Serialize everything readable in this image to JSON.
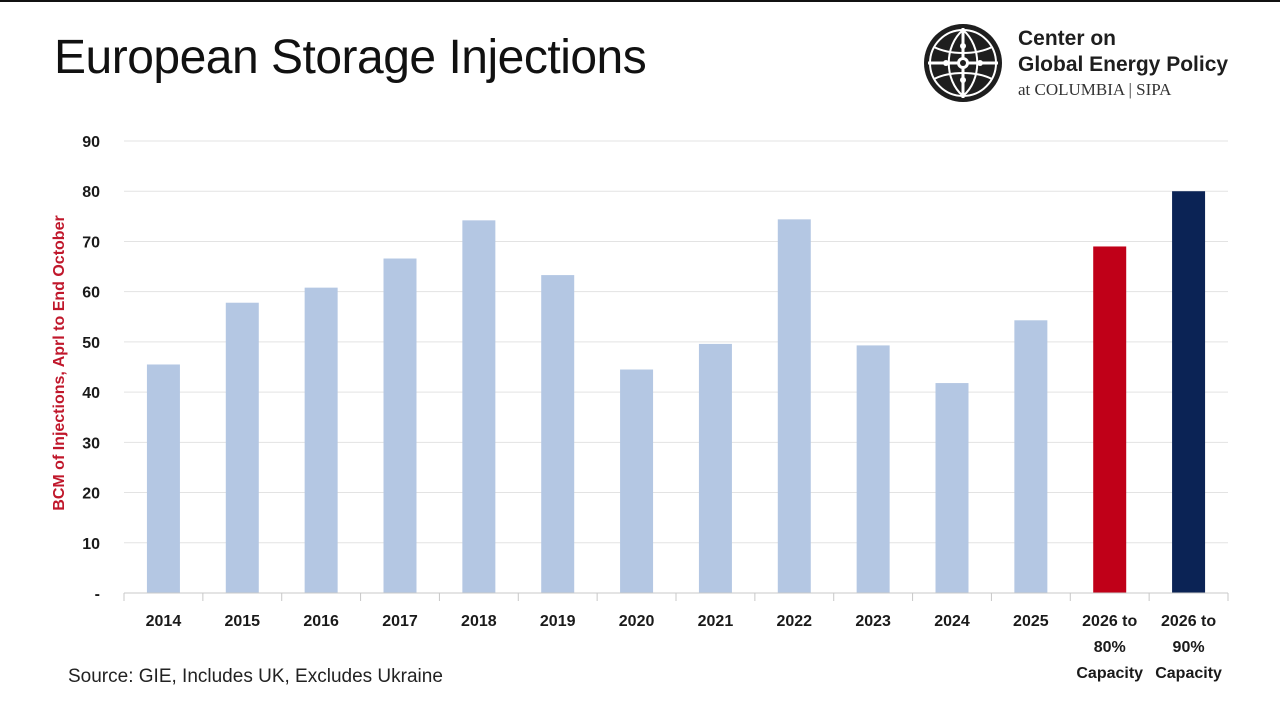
{
  "title": "European Storage Injections",
  "brand": {
    "name_line1": "Center on",
    "name_line2": "Global Energy Policy",
    "affiliation": "at COLUMBIA | SIPA",
    "logo_icon": "globe-emblem-icon"
  },
  "source": "Source: GIE, Includes UK, Excludes Ukraine",
  "colors": {
    "default_bar": "#b4c7e3",
    "highlight_red": "#c00018",
    "highlight_navy": "#0b2355",
    "ylabel": "#c0172b",
    "grid": "#e3e3e3",
    "axis": "#c8c8c8"
  },
  "chart_data": {
    "type": "bar",
    "title": "European Storage Injections",
    "xlabel": "",
    "ylabel": "BCM of Injections, Aprl to End October",
    "ylim": [
      0,
      90
    ],
    "yticks": [
      0,
      10,
      20,
      30,
      40,
      50,
      60,
      70,
      80,
      90
    ],
    "ytick_labels": [
      "-",
      "10",
      "20",
      "30",
      "40",
      "50",
      "60",
      "70",
      "80",
      "90"
    ],
    "grid": true,
    "categories": [
      [
        "2014"
      ],
      [
        "2015"
      ],
      [
        "2016"
      ],
      [
        "2017"
      ],
      [
        "2018"
      ],
      [
        "2019"
      ],
      [
        "2020"
      ],
      [
        "2021"
      ],
      [
        "2022"
      ],
      [
        "2023"
      ],
      [
        "2024"
      ],
      [
        "2025"
      ],
      [
        "2026 to",
        "80%",
        "Capacity"
      ],
      [
        "2026 to",
        "90%",
        "Capacity"
      ]
    ],
    "values": [
      45.5,
      57.8,
      60.8,
      66.6,
      74.2,
      63.3,
      44.5,
      49.6,
      74.4,
      49.3,
      41.8,
      54.3,
      69.0,
      80.0
    ],
    "bar_colors": [
      "default",
      "default",
      "default",
      "default",
      "default",
      "default",
      "default",
      "default",
      "default",
      "default",
      "default",
      "default",
      "highlight_red",
      "highlight_navy"
    ]
  }
}
